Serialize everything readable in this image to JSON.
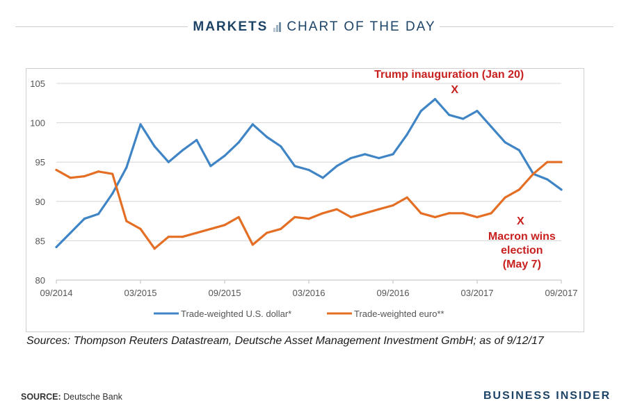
{
  "header": {
    "section": "MARKETS",
    "title": "CHART OF THE DAY",
    "section_icon": "bar-chart-icon"
  },
  "chart_data": {
    "type": "line",
    "title": "",
    "xlabel": "",
    "ylabel": "",
    "ylim": [
      80,
      105
    ],
    "yticks": [
      80,
      85,
      90,
      95,
      100,
      105
    ],
    "xticks": [
      "09/2014",
      "03/2015",
      "09/2015",
      "03/2016",
      "09/2016",
      "03/2017",
      "09/2017"
    ],
    "grid": true,
    "legend_position": "bottom",
    "x_months_from_start": [
      0,
      1,
      2,
      3,
      4,
      5,
      6,
      7,
      8,
      9,
      10,
      11,
      12,
      13,
      14,
      15,
      16,
      17,
      18,
      19,
      20,
      21,
      22,
      23,
      24,
      25,
      26,
      27,
      28,
      29,
      30,
      31,
      32,
      33,
      34,
      35,
      36
    ],
    "x_labels": [
      "09/2014",
      "10/2014",
      "11/2014",
      "12/2014",
      "01/2015",
      "02/2015",
      "03/2015",
      "04/2015",
      "05/2015",
      "06/2015",
      "07/2015",
      "08/2015",
      "09/2015",
      "10/2015",
      "11/2015",
      "12/2015",
      "01/2016",
      "02/2016",
      "03/2016",
      "04/2016",
      "05/2016",
      "06/2016",
      "07/2016",
      "08/2016",
      "09/2016",
      "10/2016",
      "11/2016",
      "12/2016",
      "01/2017",
      "02/2017",
      "03/2017",
      "04/2017",
      "05/2017",
      "06/2017",
      "07/2017",
      "08/2017",
      "09/2017"
    ],
    "series": [
      {
        "name": "Trade-weighted U.S. dollar*",
        "color": "#3f85c6",
        "values": [
          84.2,
          86.0,
          87.8,
          88.4,
          91.0,
          94.3,
          99.8,
          97.0,
          95.0,
          96.5,
          97.8,
          94.5,
          95.8,
          97.5,
          99.8,
          98.2,
          97.0,
          94.5,
          94.0,
          93.0,
          94.5,
          95.5,
          96.0,
          95.5,
          96.0,
          98.5,
          101.5,
          103.0,
          101.0,
          100.5,
          101.5,
          99.5,
          97.5,
          96.5,
          93.5,
          92.8,
          91.5
        ]
      },
      {
        "name": "Trade-weighted euro**",
        "color": "#e46f24",
        "values": [
          94.0,
          93.0,
          93.2,
          93.8,
          93.5,
          87.5,
          86.5,
          84.0,
          85.5,
          85.5,
          86.0,
          86.5,
          87.0,
          88.0,
          84.5,
          86.0,
          86.5,
          88.0,
          87.8,
          88.5,
          89.0,
          88.0,
          88.5,
          89.0,
          89.5,
          90.5,
          88.5,
          88.0,
          88.5,
          88.5,
          88.0,
          88.5,
          90.5,
          91.5,
          93.5,
          95.0,
          95.0
        ]
      }
    ],
    "annotations": [
      {
        "text": "Trump inauguration (Jan 20)",
        "marker": "X",
        "x_label": "01/2017",
        "series": "Trade-weighted U.S. dollar*",
        "color": "#c8201f"
      },
      {
        "text_lines": [
          "Macron wins",
          "election",
          "(May 7)"
        ],
        "marker": "X",
        "x_label": "05/2017",
        "series": "Trade-weighted euro**",
        "color": "#c8201f"
      }
    ]
  },
  "sources_note": "Sources: Thompson Reuters Datastream, Deutsche Asset Management Investment GmbH; as of 9/12/17",
  "footer": {
    "source_label": "SOURCE:",
    "source_value": "Deutsche Bank",
    "brand": "BUSINESS INSIDER"
  }
}
